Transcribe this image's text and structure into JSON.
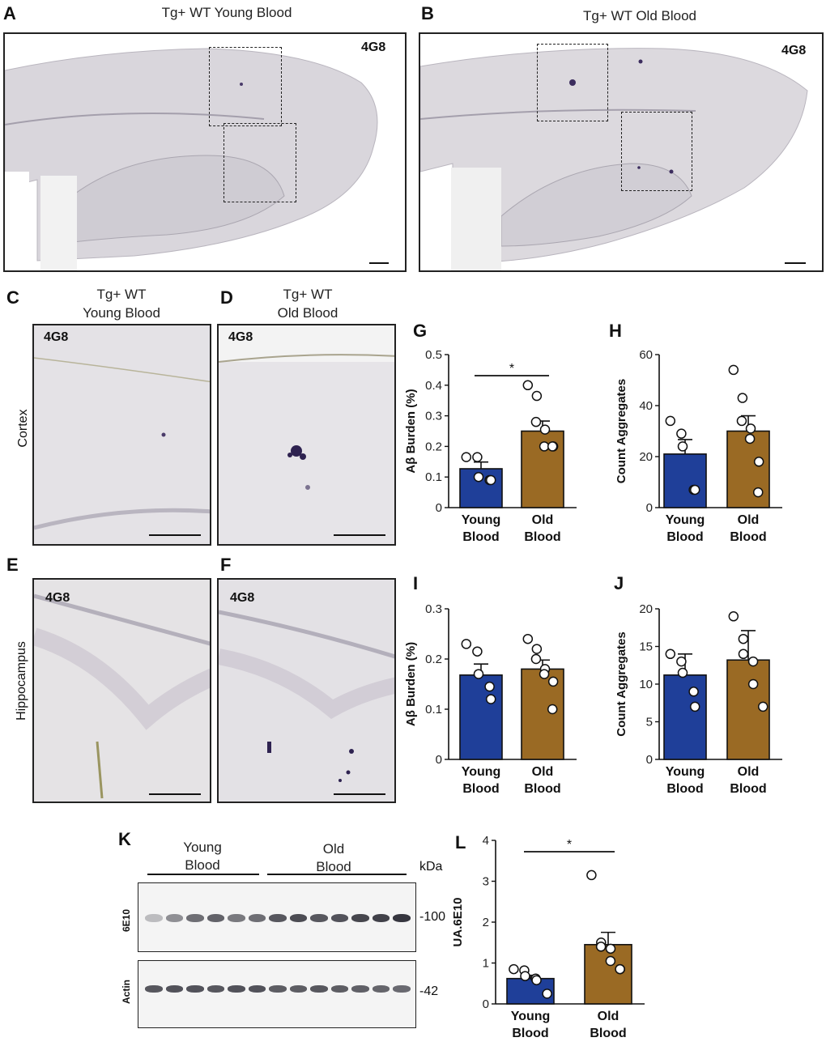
{
  "panels": {
    "A": {
      "letter": "A",
      "title": "Tg+ WT Young Blood",
      "stain": "4G8"
    },
    "B": {
      "letter": "B",
      "title": "Tg+ WT Old Blood",
      "stain": "4G8"
    },
    "C": {
      "letter": "C",
      "title_line1": "Tg+ WT",
      "title_line2": "Young Blood",
      "stain": "4G8"
    },
    "D": {
      "letter": "D",
      "title_line1": "Tg+ WT",
      "title_line2": "Old Blood",
      "stain": "4G8"
    },
    "E": {
      "letter": "E",
      "stain": "4G8"
    },
    "F": {
      "letter": "F",
      "stain": "4G8"
    },
    "K": {
      "letter": "K"
    },
    "row_cortex": "Cortex",
    "row_hippocampus": "Hippocampus"
  },
  "blot": {
    "group1_line1": "Young",
    "group1_line2": "Blood",
    "group2_line1": "Old",
    "group2_line2": "Blood",
    "kda_label": "kDa",
    "top_label": "6E10",
    "bottom_label": "Actin",
    "top_marker": "-100",
    "bottom_marker": "-42",
    "lanes": 13
  },
  "colors": {
    "young": "#1f3f99",
    "old": "#9a6a24",
    "dot_fill": "#ffffff",
    "axis": "#111111"
  },
  "chart_data": [
    {
      "id": "G",
      "letter": "G",
      "type": "bar",
      "ylabel": "Aβ Burden (%)",
      "ylim": [
        0,
        0.5
      ],
      "ticks": [
        "0",
        "0.1",
        "0.2",
        "0.3",
        "0.4",
        "0.5"
      ],
      "categories": [
        "Young Blood",
        "Old Blood"
      ],
      "cat_line1": [
        "Young",
        "Old"
      ],
      "cat_line2": [
        "Blood",
        "Blood"
      ],
      "values": [
        0.127,
        0.25
      ],
      "errors": [
        0.022,
        0.033
      ],
      "points": [
        [
          0.165,
          0.165,
          0.1,
          0.09,
          0.09
        ],
        [
          0.4,
          0.365,
          0.28,
          0.255,
          0.2,
          0.2,
          0.2
        ]
      ],
      "significance": "*"
    },
    {
      "id": "H",
      "letter": "H",
      "type": "bar",
      "ylabel": "Count Aggregates",
      "ylim": [
        0,
        60
      ],
      "ticks": [
        "0",
        "20",
        "40",
        "60"
      ],
      "categories": [
        "Young Blood",
        "Old Blood"
      ],
      "cat_line1": [
        "Young",
        "Old"
      ],
      "cat_line2": [
        "Blood",
        "Blood"
      ],
      "values": [
        21,
        30
      ],
      "errors": [
        5.7,
        6
      ],
      "points": [
        [
          34,
          29,
          24,
          7,
          7
        ],
        [
          54,
          43,
          34,
          31,
          27,
          18,
          6
        ]
      ],
      "significance": ""
    },
    {
      "id": "I",
      "letter": "I",
      "type": "bar",
      "ylabel": "Aβ Burden (%)",
      "ylim": [
        0,
        0.3
      ],
      "ticks": [
        "0",
        "0.1",
        "0.2",
        "0.3"
      ],
      "categories": [
        "Young Blood",
        "Old Blood"
      ],
      "cat_line1": [
        "Young",
        "Old"
      ],
      "cat_line2": [
        "Blood",
        "Blood"
      ],
      "values": [
        0.168,
        0.18
      ],
      "errors": [
        0.022,
        0.018
      ],
      "points": [
        [
          0.23,
          0.215,
          0.17,
          0.145,
          0.12
        ],
        [
          0.24,
          0.22,
          0.2,
          0.18,
          0.17,
          0.155,
          0.1
        ]
      ],
      "significance": ""
    },
    {
      "id": "J",
      "letter": "J",
      "type": "bar",
      "ylabel": "Count Aggregates",
      "ylim": [
        0,
        20
      ],
      "ticks": [
        "0",
        "5",
        "10",
        "15",
        "20"
      ],
      "categories": [
        "Young Blood",
        "Old Blood"
      ],
      "cat_line1": [
        "Young",
        "Old"
      ],
      "cat_line2": [
        "Blood",
        "Blood"
      ],
      "values": [
        11.2,
        13.2
      ],
      "errors": [
        2.8,
        3.9
      ],
      "points": [
        [
          14,
          13,
          11.5,
          9,
          7
        ],
        [
          19,
          16,
          14,
          13,
          10,
          7
        ]
      ],
      "significance": ""
    },
    {
      "id": "L",
      "letter": "L",
      "type": "bar",
      "ylabel": "UA.6E10",
      "ylim": [
        0,
        4
      ],
      "ticks": [
        "0",
        "1",
        "2",
        "3",
        "4"
      ],
      "categories": [
        "Young Blood",
        "Old Blood"
      ],
      "cat_line1": [
        "Young",
        "Old"
      ],
      "cat_line2": [
        "Blood",
        "Blood"
      ],
      "values": [
        0.62,
        1.45
      ],
      "errors": [
        0.08,
        0.3
      ],
      "points": [
        [
          0.85,
          0.82,
          0.68,
          0.62,
          0.58,
          0.25
        ],
        [
          3.15,
          1.5,
          1.4,
          1.35,
          1.05,
          0.85,
          0.85
        ]
      ],
      "significance": "*"
    }
  ]
}
